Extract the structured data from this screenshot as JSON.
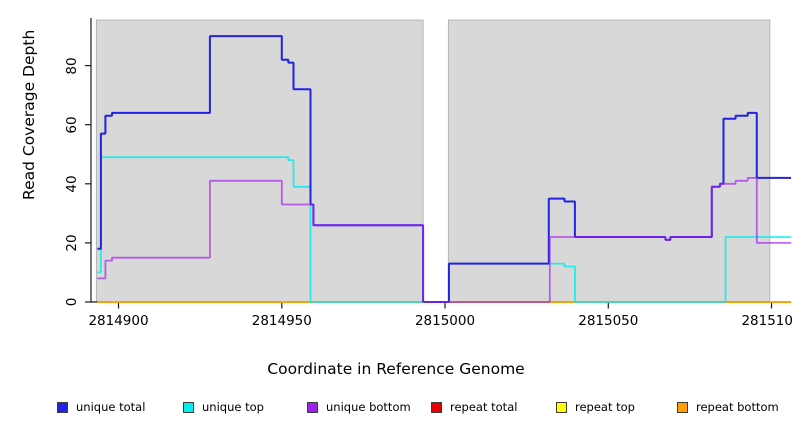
{
  "chart_data": {
    "type": "line",
    "subtype": "step-coverage",
    "title": "",
    "xlabel": "Coordinate in Reference Genome",
    "ylabel": "Read Coverage Depth",
    "x_ticks": [
      2814900,
      2814950,
      2815000,
      2815050,
      2815100
    ],
    "y_ticks": [
      0,
      20,
      40,
      60,
      80
    ],
    "xlim": [
      2814893.5,
      2815106
    ],
    "ylim": [
      0,
      96
    ],
    "grid": false,
    "legend_position": "bottom",
    "plot_background": "#ffffff",
    "highlight_regions": [
      {
        "from": 2814893.2,
        "to": 2814993.3,
        "color": "#d8d8d8",
        "border": "#a8a8a8"
      },
      {
        "from": 2815001.0,
        "to": 2815099.5,
        "color": "#d8d8d8",
        "border": "#a8a8a8"
      }
    ],
    "draw_order": [
      "repeat total",
      "repeat top",
      "repeat bottom",
      "unique top",
      "unique total",
      "unique bottom"
    ],
    "series": [
      {
        "name": "unique total",
        "color": "#2222e0",
        "width": 2,
        "opacity": 1,
        "steps": [
          [
            2814893.5,
            18
          ],
          [
            2814894.6,
            57
          ],
          [
            2814896,
            63
          ],
          [
            2814898,
            64
          ],
          [
            2814928,
            90
          ],
          [
            2814950,
            82
          ],
          [
            2814952,
            81
          ],
          [
            2814953.6,
            72
          ],
          [
            2814958.8,
            33
          ],
          [
            2814959.7,
            26
          ],
          [
            2814993.3,
            0
          ],
          [
            2815001.2,
            13
          ],
          [
            2815031.8,
            35
          ],
          [
            2815036.6,
            34
          ],
          [
            2815039.8,
            22
          ],
          [
            2815067.5,
            21
          ],
          [
            2815069,
            22
          ],
          [
            2815081.7,
            39
          ],
          [
            2815084.2,
            40
          ],
          [
            2815085.3,
            62
          ],
          [
            2815089,
            63
          ],
          [
            2815092.7,
            64
          ],
          [
            2815095.5,
            42
          ]
        ]
      },
      {
        "name": "unique top",
        "color": "#00eeee",
        "width": 1.8,
        "opacity": 0.8,
        "steps": [
          [
            2814893.5,
            10
          ],
          [
            2814894.6,
            49
          ],
          [
            2814952,
            48
          ],
          [
            2814953.6,
            39
          ],
          [
            2814958.8,
            0
          ],
          [
            2815001.2,
            13
          ],
          [
            2815036.6,
            12
          ],
          [
            2815039.8,
            0
          ],
          [
            2815085.9,
            22
          ]
        ]
      },
      {
        "name": "unique bottom",
        "color": "#a020f0",
        "width": 1.8,
        "opacity": 0.68,
        "steps": [
          [
            2814893.5,
            8
          ],
          [
            2814896,
            14
          ],
          [
            2814898,
            15
          ],
          [
            2814928,
            41
          ],
          [
            2814950,
            33
          ],
          [
            2814959.7,
            26
          ],
          [
            2814993.3,
            0
          ],
          [
            2815032.1,
            22
          ],
          [
            2815067.5,
            21
          ],
          [
            2815069,
            22
          ],
          [
            2815081.7,
            39
          ],
          [
            2815084.2,
            40
          ],
          [
            2815089,
            41
          ],
          [
            2815092.7,
            42
          ],
          [
            2815095.5,
            20
          ]
        ]
      },
      {
        "name": "repeat total",
        "color": "#e60000",
        "width": 1.5,
        "opacity": 1,
        "steps": [
          [
            2814893.5,
            0
          ]
        ]
      },
      {
        "name": "repeat top",
        "color": "#ffff00",
        "width": 1.5,
        "opacity": 1,
        "steps": [
          [
            2814893.5,
            0
          ]
        ]
      },
      {
        "name": "repeat bottom",
        "color": "#ff9f00",
        "width": 1.8,
        "opacity": 1,
        "steps": [
          [
            2814893.5,
            0
          ]
        ]
      }
    ]
  },
  "legend": {
    "items": [
      {
        "label": "unique total",
        "color": "#2222e0"
      },
      {
        "label": "unique top",
        "color": "#00eeee"
      },
      {
        "label": "unique bottom",
        "color": "#a020f0"
      },
      {
        "label": "repeat total",
        "color": "#e60000"
      },
      {
        "label": "repeat top",
        "color": "#ffff00"
      },
      {
        "label": "repeat bottom",
        "color": "#ff9f00"
      }
    ]
  }
}
